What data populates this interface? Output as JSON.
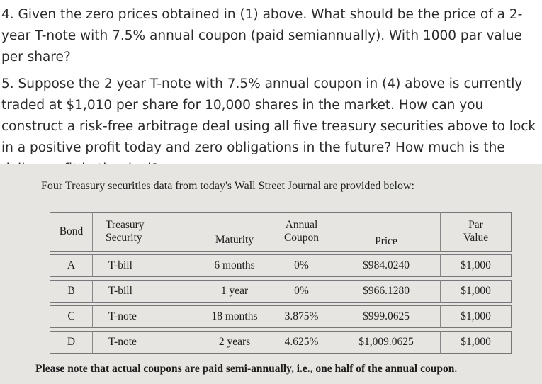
{
  "questions": {
    "q4": "4. Given the zero prices obtained in (1) above. What should be the price of a 2-year T-note with 7.5% annual coupon (paid semiannually). With 1000 par value per share?",
    "q5": "5. Suppose the 2 year T-note with 7.5% annual coupon in (4) above is currently traded at $1,010 per share for 10,000 shares in the market. How can you construct a risk-free arbitrage deal using all five treasury securities above to lock in a positive profit today and zero obligations in the future? How much is the dollar profit in the deal?"
  },
  "image": {
    "intro": "Four Treasury securities data from today's Wall Street Journal are provided below:",
    "headers": {
      "bond": "Bond",
      "security_line1": "Treasury",
      "security_line2": "Security",
      "maturity": "Maturity",
      "coupon_line1": "Annual",
      "coupon_line2": "Coupon",
      "price": "Price",
      "par_line1": "Par",
      "par_line2": "Value"
    },
    "rows": [
      {
        "bond": "A",
        "security": "T-bill",
        "maturity": "6 months",
        "coupon": "0%",
        "price": "$984.0240",
        "par": "$1,000"
      },
      {
        "bond": "B",
        "security": "T-bill",
        "maturity": "1 year",
        "coupon": "0%",
        "price": "$966.1280",
        "par": "$1,000"
      },
      {
        "bond": "C",
        "security": "T-note",
        "maturity": "18 months",
        "coupon": "3.875%",
        "price": "$999.0625",
        "par": "$1,000"
      },
      {
        "bond": "D",
        "security": "T-note",
        "maturity": "2 years",
        "coupon": "4.625%",
        "price": "$1,009.0625",
        "par": "$1,000"
      }
    ],
    "note": "Please note that actual coupons are paid semi-annually, i.e., one half of the annual coupon."
  }
}
